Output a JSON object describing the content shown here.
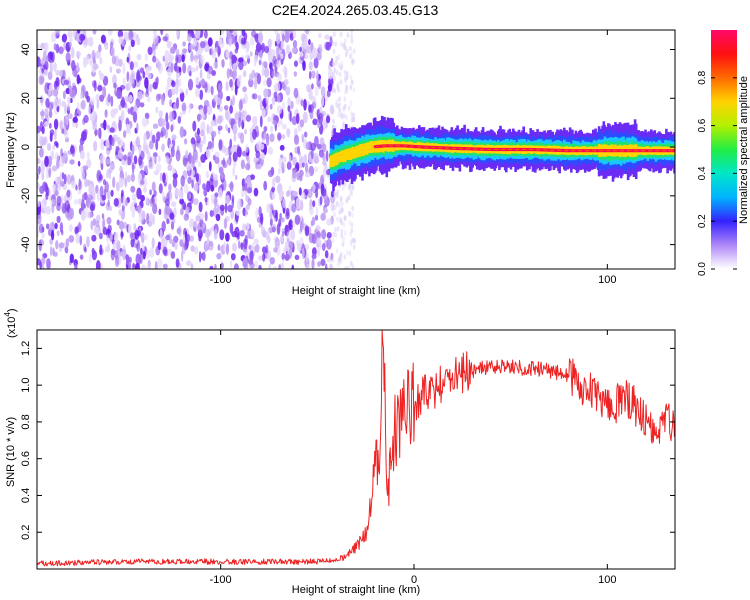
{
  "figure_title": "C2E4.2024.265.03.45.G13",
  "colors": {
    "snr_line": "#ee2222",
    "spectrogram_low": "#9a5cf0",
    "spectrogram_high": "#ff0a50"
  },
  "chart_data": [
    {
      "id": "spectrogram",
      "type": "heatmap",
      "title": "",
      "xlabel": "Height of straight line (km)",
      "ylabel": "Frequency (Hz)",
      "xlim": [
        -195,
        135
      ],
      "ylim": [
        -50,
        48
      ],
      "x_ticks": [
        -100,
        0,
        100
      ],
      "x_tick_labels": [
        "-100",
        "",
        "100"
      ],
      "y_ticks": [
        -40,
        -20,
        0,
        20,
        40
      ],
      "y_tick_labels": [
        "-40",
        "-20",
        "0",
        "20",
        "40"
      ],
      "noise_region": {
        "x_from": -195,
        "x_to": -42,
        "y_from": -50,
        "y_to": 48,
        "normalized_amplitude": 0.05
      },
      "carrier_track": [
        {
          "x": -43,
          "freq": -6
        },
        {
          "x": -38,
          "freq": -4
        },
        {
          "x": -30,
          "freq": -2
        },
        {
          "x": -22,
          "freq": 0
        },
        {
          "x": -15,
          "freq": 0.5
        },
        {
          "x": -5,
          "freq": 0.5
        },
        {
          "x": 5,
          "freq": 0
        },
        {
          "x": 20,
          "freq": -0.5
        },
        {
          "x": 40,
          "freq": -1
        },
        {
          "x": 60,
          "freq": -1
        },
        {
          "x": 80,
          "freq": -1.5
        },
        {
          "x": 100,
          "freq": -1.5
        },
        {
          "x": 120,
          "freq": -1.5
        },
        {
          "x": 135,
          "freq": -1.5
        }
      ],
      "colorbar": {
        "label": "Normalized spectral amplitude",
        "range": [
          0.0,
          1.0
        ],
        "ticks": [
          0.0,
          0.2,
          0.4,
          0.6,
          0.8
        ],
        "tick_labels": [
          "0.0",
          "0.2",
          "0.4",
          "0.6",
          "0.8"
        ]
      }
    },
    {
      "id": "snr",
      "type": "line",
      "title": "",
      "xlabel": "Height of straight line (km)",
      "ylabel": "SNR (10 * v/v)",
      "multiplier_label": "(x10",
      "multiplier_exponent": "4",
      "multiplier_close": ")",
      "xlim": [
        -195,
        135
      ],
      "ylim": [
        0.0,
        1.3
      ],
      "x_ticks": [
        -100,
        0,
        100
      ],
      "x_tick_labels": [
        "-100",
        "0",
        "100"
      ],
      "y_ticks": [
        0.2,
        0.4,
        0.6,
        0.8,
        1.0,
        1.2
      ],
      "y_tick_labels": [
        "0.2",
        "0.4",
        "0.6",
        "0.8",
        "1.0",
        "1.2"
      ],
      "envelope_x": [
        -195,
        -150,
        -100,
        -50,
        -40,
        -35,
        -30,
        -25,
        -22,
        -20,
        -18,
        -16,
        -14,
        -12,
        -10,
        -5,
        0,
        10,
        20,
        30,
        40,
        50,
        60,
        70,
        80,
        90,
        100,
        110,
        120,
        125,
        130,
        135
      ],
      "envelope_y": [
        0.03,
        0.04,
        0.04,
        0.04,
        0.05,
        0.07,
        0.12,
        0.2,
        0.35,
        0.6,
        0.5,
        1.29,
        0.4,
        0.55,
        0.75,
        0.85,
        0.9,
        0.98,
        1.05,
        1.08,
        1.1,
        1.1,
        1.09,
        1.08,
        1.05,
        0.98,
        0.87,
        0.93,
        0.82,
        0.68,
        0.8,
        0.78
      ]
    }
  ]
}
